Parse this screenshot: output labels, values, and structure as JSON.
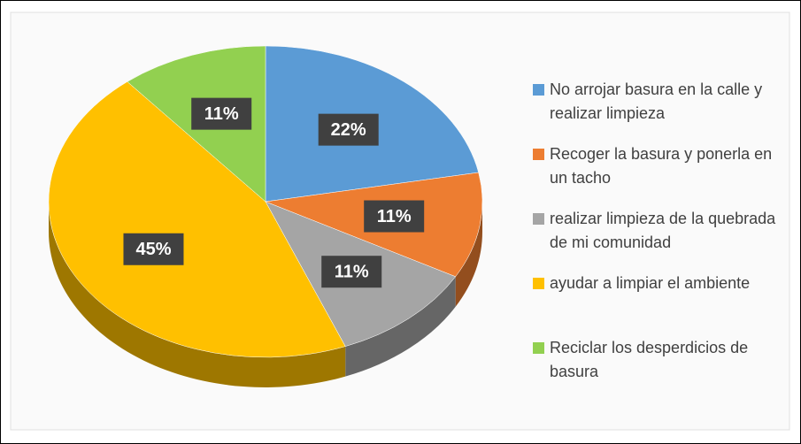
{
  "chart_data": {
    "type": "pie",
    "categories": [
      "No arrojar basura en la calle y realizar limpieza",
      "Recoger la basura y ponerla en un tacho",
      "realizar limpieza de la quebrada de mi comunidad",
      "ayudar a limpiar el ambiente",
      "Reciclar los desperdicios de basura"
    ],
    "values": [
      22,
      11,
      11,
      45,
      11
    ],
    "value_labels": [
      "22%",
      "11%",
      "11%",
      "45%",
      "11%"
    ],
    "colors": [
      "#5b9bd5",
      "#ed7d31",
      "#a5a5a5",
      "#ffc000",
      "#92d050"
    ],
    "legend": "right"
  }
}
